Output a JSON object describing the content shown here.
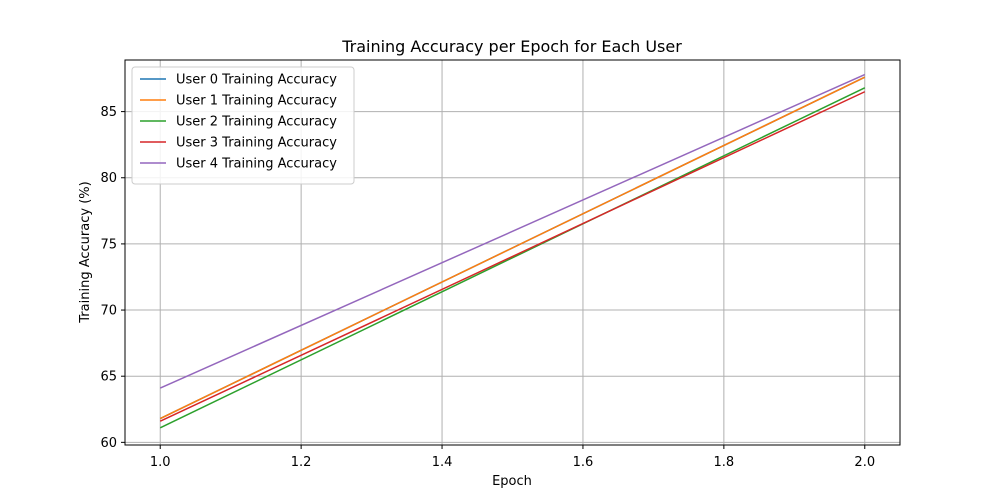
{
  "chart_data": {
    "type": "line",
    "title": "Training Accuracy per Epoch for Each User",
    "xlabel": "Epoch",
    "ylabel": "Training Accuracy (%)",
    "xlim": [
      0.95,
      2.05
    ],
    "ylim": [
      59.8,
      88.9
    ],
    "xticks": [
      1.0,
      1.2,
      1.4,
      1.6,
      1.8,
      2.0
    ],
    "xtick_labels": [
      "1.0",
      "1.2",
      "1.4",
      "1.6",
      "1.8",
      "2.0"
    ],
    "yticks": [
      60,
      65,
      70,
      75,
      80,
      85
    ],
    "ytick_labels": [
      "60",
      "65",
      "70",
      "75",
      "80",
      "85"
    ],
    "grid": true,
    "legend_position": "top-left",
    "series": [
      {
        "name": "User 0 Training Accuracy",
        "color": "#1f77b4",
        "x": [
          1,
          2
        ],
        "y": [
          61.8,
          87.6
        ]
      },
      {
        "name": "User 1 Training Accuracy",
        "color": "#ff7f0e",
        "x": [
          1,
          2
        ],
        "y": [
          61.8,
          87.6
        ]
      },
      {
        "name": "User 2 Training Accuracy",
        "color": "#2ca02c",
        "x": [
          1,
          2
        ],
        "y": [
          61.1,
          86.8
        ]
      },
      {
        "name": "User 3 Training Accuracy",
        "color": "#d62728",
        "x": [
          1,
          2
        ],
        "y": [
          61.6,
          86.5
        ]
      },
      {
        "name": "User 4 Training Accuracy",
        "color": "#9467bd",
        "x": [
          1,
          2
        ],
        "y": [
          64.1,
          87.8
        ]
      }
    ]
  }
}
